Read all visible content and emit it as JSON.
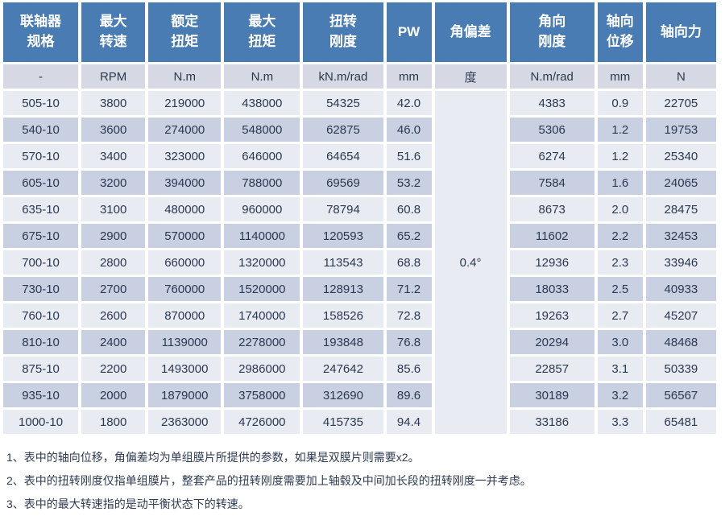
{
  "colors": {
    "header_bg": "#4a7cb4",
    "unit_row_bg": "#d6d9e3",
    "row_light_bg": "#e9ebf2",
    "row_dark_bg": "#c9d0e1",
    "merged_cell_bg": "#e4e6ee",
    "cell_text": "#2b3950",
    "footnote_text": "#2e3b52"
  },
  "table": {
    "headers": [
      "联轴器\n规格",
      "最大\n转速",
      "额定\n扭矩",
      "最大\n扭矩",
      "扭转\n刚度",
      "PW",
      "角偏差",
      "角向\n刚度",
      "轴向\n位移",
      "轴向力"
    ],
    "units": [
      "-",
      "RPM",
      "N.m",
      "N.m",
      "kN.m/rad",
      "mm",
      "度",
      "N.m/rad",
      "mm",
      "N"
    ],
    "angular_deviation_merged_value": "0.4°",
    "rows": [
      [
        "505-10",
        "3800",
        "219000",
        "438000",
        "54325",
        "42.0",
        "4383",
        "0.9",
        "22705"
      ],
      [
        "540-10",
        "3600",
        "274000",
        "548000",
        "62875",
        "46.0",
        "5306",
        "1.2",
        "19753"
      ],
      [
        "570-10",
        "3400",
        "323000",
        "646000",
        "64654",
        "51.6",
        "6274",
        "1.2",
        "25340"
      ],
      [
        "605-10",
        "3200",
        "394000",
        "788000",
        "69569",
        "53.2",
        "7584",
        "1.6",
        "24065"
      ],
      [
        "635-10",
        "3100",
        "480000",
        "960000",
        "78794",
        "60.8",
        "8673",
        "2.0",
        "28475"
      ],
      [
        "675-10",
        "2900",
        "570000",
        "1140000",
        "120593",
        "65.2",
        "11602",
        "2.2",
        "32453"
      ],
      [
        "700-10",
        "2800",
        "660000",
        "1320000",
        "113543",
        "68.8",
        "12936",
        "2.3",
        "33946"
      ],
      [
        "730-10",
        "2700",
        "760000",
        "1520000",
        "128913",
        "71.2",
        "18033",
        "2.5",
        "40933"
      ],
      [
        "760-10",
        "2600",
        "870000",
        "1740000",
        "158526",
        "72.8",
        "19263",
        "2.7",
        "45207"
      ],
      [
        "810-10",
        "2400",
        "1139000",
        "2278000",
        "193848",
        "76.8",
        "20294",
        "3.0",
        "48468"
      ],
      [
        "875-10",
        "2200",
        "1493000",
        "2986000",
        "247642",
        "85.6",
        "22857",
        "3.1",
        "50339"
      ],
      [
        "935-10",
        "2000",
        "1879000",
        "3758000",
        "312690",
        "89.6",
        "30189",
        "3.2",
        "56567"
      ],
      [
        "1000-10",
        "1800",
        "2363000",
        "4726000",
        "415735",
        "94.4",
        "33186",
        "3.3",
        "65481"
      ]
    ]
  },
  "footnotes": [
    "1、表中的轴向位移，角偏差均为单组膜片所提供的参数，如果是双膜片则需要x2。",
    "2、表中的扭转刚度仅指单组膜片，整套产品的扭转刚度需要加上轴毂及中间加长段的扭转刚度一并考虑。",
    "3、表中的最大转速指的是动平衡状态下的转速。"
  ]
}
